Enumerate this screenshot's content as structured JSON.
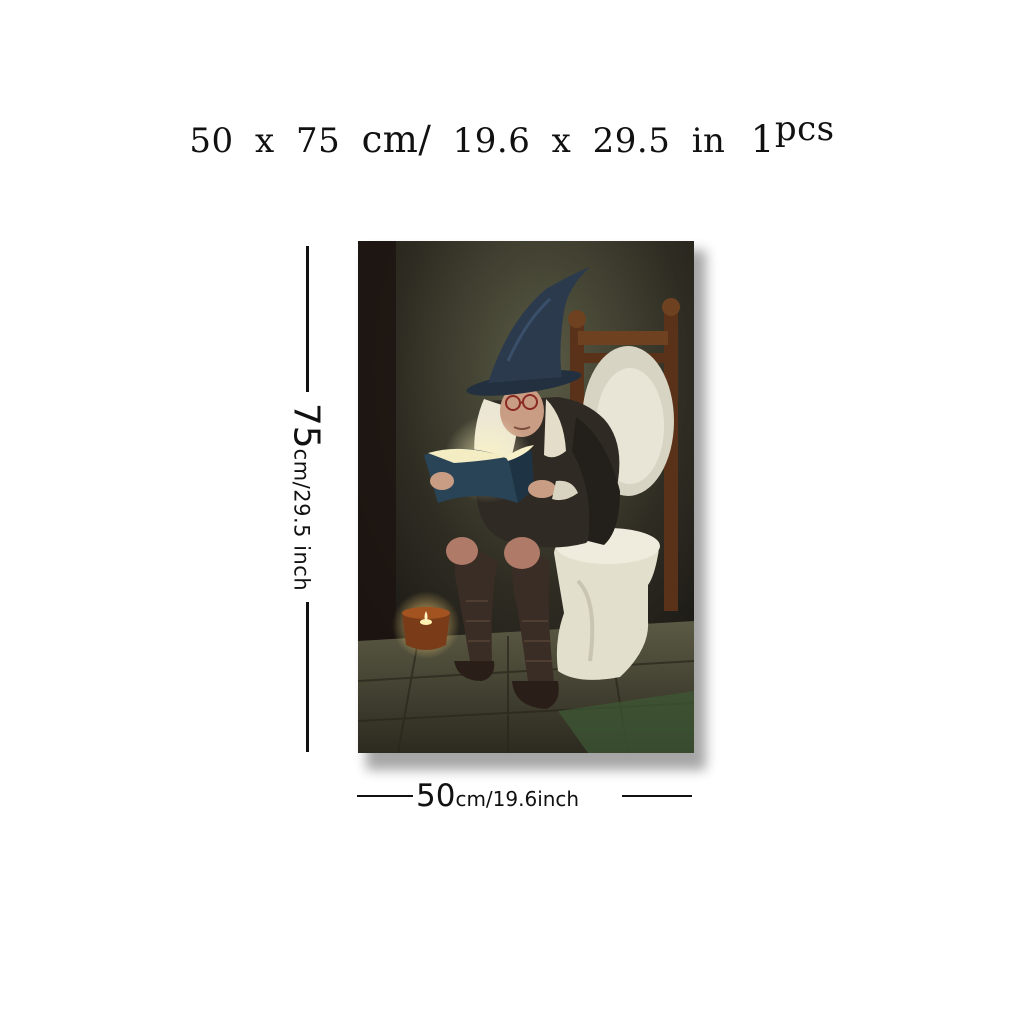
{
  "headline": {
    "width": "50",
    "x1": "x",
    "height": "75",
    "unit_cm": "cm/",
    "width_in": "19.6",
    "x2": "x",
    "height_in": "29.5",
    "unit_in": "in",
    "qty_num": "1",
    "qty_unit": "pcs"
  },
  "dimensions": {
    "vertical": {
      "value": "75",
      "unit": "cm/29.5 inch"
    },
    "horizontal": {
      "value": "50",
      "unit": "cm/19.6inch"
    }
  },
  "colors": {
    "background": "#ffffff",
    "text": "#111111",
    "hat": "#2b3a4d",
    "toilet": "#e6e2d2",
    "candle_glow": "#f6c45a"
  }
}
